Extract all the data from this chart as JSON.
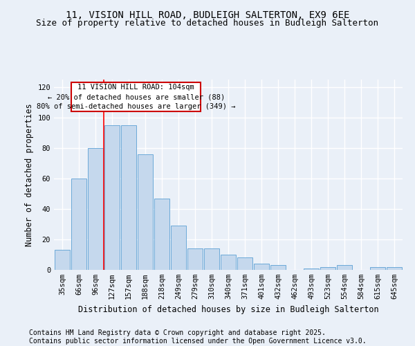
{
  "title1": "11, VISION HILL ROAD, BUDLEIGH SALTERTON, EX9 6EE",
  "title2": "Size of property relative to detached houses in Budleigh Salterton",
  "xlabel": "Distribution of detached houses by size in Budleigh Salterton",
  "ylabel": "Number of detached properties",
  "categories": [
    "35sqm",
    "66sqm",
    "96sqm",
    "127sqm",
    "157sqm",
    "188sqm",
    "218sqm",
    "249sqm",
    "279sqm",
    "310sqm",
    "340sqm",
    "371sqm",
    "401sqm",
    "432sqm",
    "462sqm",
    "493sqm",
    "523sqm",
    "554sqm",
    "584sqm",
    "615sqm",
    "645sqm"
  ],
  "values": [
    13,
    60,
    80,
    95,
    95,
    76,
    47,
    29,
    14,
    14,
    10,
    8,
    4,
    3,
    0,
    1,
    2,
    3,
    0,
    2,
    2
  ],
  "bar_color": "#c5d8ed",
  "bar_edge_color": "#5a9fd4",
  "red_line_x": 2.5,
  "annotation_text": "11 VISION HILL ROAD: 104sqm\n← 20% of detached houses are smaller (88)\n80% of semi-detached houses are larger (349) →",
  "annotation_box_color": "#ffffff",
  "annotation_box_edge": "#cc0000",
  "ylim": [
    0,
    125
  ],
  "yticks": [
    0,
    20,
    40,
    60,
    80,
    100,
    120
  ],
  "footnote1": "Contains HM Land Registry data © Crown copyright and database right 2025.",
  "footnote2": "Contains public sector information licensed under the Open Government Licence v3.0.",
  "bg_color": "#eaf0f8",
  "plot_bg_color": "#eaf0f8",
  "grid_color": "#ffffff",
  "title_fontsize": 10,
  "subtitle_fontsize": 9,
  "axis_label_fontsize": 8.5,
  "tick_fontsize": 7.5,
  "annotation_fontsize": 7.5,
  "footnote_fontsize": 7
}
